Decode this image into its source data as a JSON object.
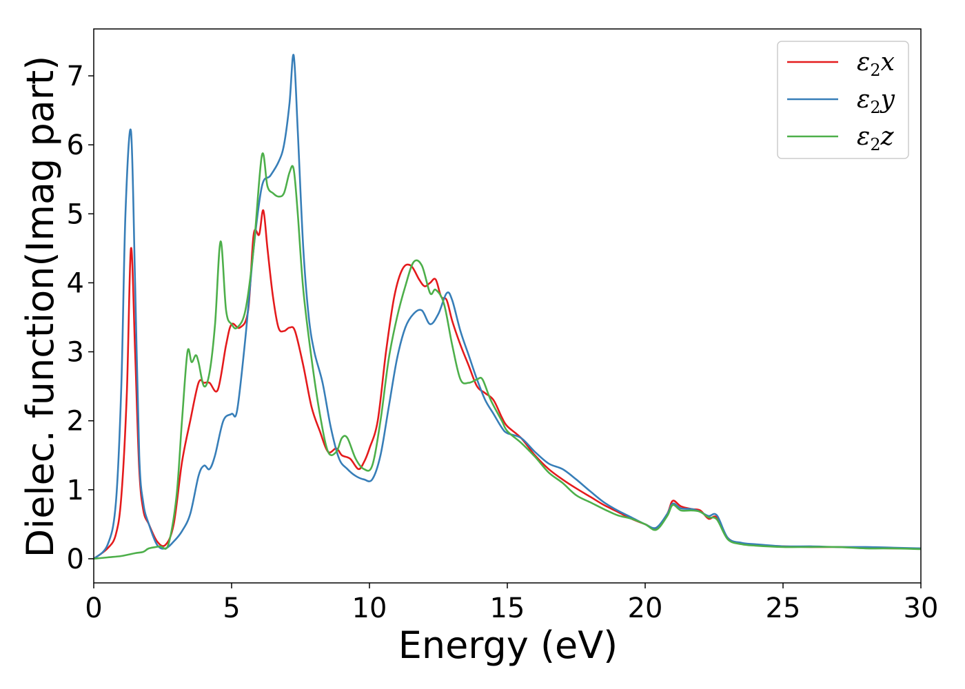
{
  "chart_data": {
    "type": "line",
    "title": "",
    "xlabel": "Energy (eV)",
    "ylabel": "Dielec. function(Imag part)",
    "xlim": [
      0,
      30
    ],
    "ylim": [
      -0.35,
      7.68
    ],
    "xticks": [
      0,
      5,
      10,
      15,
      20,
      25,
      30
    ],
    "yticks": [
      0,
      1,
      2,
      3,
      4,
      5,
      6,
      7
    ],
    "grid": false,
    "legend_position": "top-right",
    "series": [
      {
        "name": "ε₂x",
        "color": "#e41a1c",
        "x": [
          0,
          0.5,
          0.8,
          1.0,
          1.2,
          1.35,
          1.5,
          1.65,
          1.8,
          2.0,
          2.3,
          2.6,
          2.9,
          3.2,
          3.5,
          3.8,
          4.0,
          4.2,
          4.5,
          4.8,
          5.0,
          5.3,
          5.6,
          5.8,
          6.0,
          6.15,
          6.3,
          6.5,
          6.7,
          6.9,
          7.1,
          7.3,
          7.6,
          7.9,
          8.2,
          8.5,
          8.8,
          9.0,
          9.3,
          9.6,
          9.8,
          10.0,
          10.3,
          10.6,
          10.9,
          11.2,
          11.5,
          11.8,
          12.0,
          12.2,
          12.4,
          12.6,
          12.8,
          13.0,
          13.3,
          13.6,
          13.9,
          14.2,
          14.5,
          14.8,
          15.0,
          15.5,
          16.0,
          16.5,
          17.0,
          17.5,
          18.0,
          18.5,
          19.0,
          19.5,
          20.0,
          20.4,
          20.8,
          21.0,
          21.3,
          21.7,
          22.0,
          22.3,
          22.6,
          23.0,
          23.5,
          24.0,
          25.0,
          26.0,
          27.0,
          28.0,
          29.0,
          30.0
        ],
        "values": [
          0.0,
          0.15,
          0.35,
          0.9,
          2.4,
          4.5,
          3.0,
          1.3,
          0.7,
          0.5,
          0.25,
          0.2,
          0.5,
          1.4,
          2.0,
          2.55,
          2.55,
          2.55,
          2.45,
          3.1,
          3.4,
          3.35,
          3.6,
          4.7,
          4.7,
          5.05,
          4.5,
          3.8,
          3.35,
          3.3,
          3.35,
          3.3,
          2.8,
          2.2,
          1.85,
          1.55,
          1.6,
          1.5,
          1.45,
          1.3,
          1.4,
          1.6,
          2.0,
          3.0,
          3.8,
          4.2,
          4.25,
          4.05,
          3.95,
          4.0,
          4.05,
          3.8,
          3.75,
          3.45,
          3.1,
          2.8,
          2.5,
          2.4,
          2.3,
          2.05,
          1.92,
          1.75,
          1.5,
          1.3,
          1.15,
          1.02,
          0.9,
          0.78,
          0.68,
          0.58,
          0.5,
          0.44,
          0.65,
          0.84,
          0.76,
          0.72,
          0.7,
          0.58,
          0.6,
          0.3,
          0.22,
          0.2,
          0.18,
          0.17,
          0.17,
          0.16,
          0.15,
          0.15
        ]
      },
      {
        "name": "ε₂y",
        "color": "#377eb8",
        "x": [
          0,
          0.5,
          0.8,
          1.0,
          1.15,
          1.35,
          1.5,
          1.65,
          1.8,
          2.0,
          2.3,
          2.6,
          2.9,
          3.2,
          3.5,
          3.8,
          4.0,
          4.2,
          4.4,
          4.7,
          5.0,
          5.2,
          5.5,
          5.8,
          6.1,
          6.4,
          6.7,
          6.9,
          7.1,
          7.25,
          7.4,
          7.6,
          7.8,
          8.0,
          8.3,
          8.6,
          8.9,
          9.2,
          9.5,
          9.8,
          10.1,
          10.4,
          10.7,
          11.0,
          11.3,
          11.6,
          11.9,
          12.2,
          12.5,
          12.8,
          13.0,
          13.3,
          13.6,
          13.9,
          14.2,
          14.5,
          14.8,
          15.0,
          15.5,
          16.0,
          16.5,
          17.0,
          17.5,
          18.0,
          18.5,
          19.0,
          19.5,
          20.0,
          20.4,
          20.8,
          21.0,
          21.3,
          21.7,
          22.0,
          22.3,
          22.6,
          23.0,
          23.5,
          24.0,
          25.0,
          26.0,
          27.0,
          28.0,
          29.0,
          30.0
        ],
        "values": [
          0.0,
          0.2,
          0.8,
          2.5,
          5.0,
          6.2,
          4.0,
          1.5,
          0.8,
          0.5,
          0.2,
          0.15,
          0.25,
          0.4,
          0.65,
          1.2,
          1.35,
          1.3,
          1.5,
          2.0,
          2.1,
          2.15,
          3.2,
          4.5,
          5.4,
          5.55,
          5.75,
          6.0,
          6.6,
          7.3,
          6.2,
          4.5,
          3.5,
          3.0,
          2.55,
          1.9,
          1.45,
          1.3,
          1.2,
          1.15,
          1.15,
          1.5,
          2.2,
          2.9,
          3.35,
          3.55,
          3.6,
          3.4,
          3.55,
          3.85,
          3.75,
          3.3,
          2.95,
          2.6,
          2.3,
          2.1,
          1.9,
          1.82,
          1.75,
          1.55,
          1.38,
          1.3,
          1.15,
          0.98,
          0.82,
          0.7,
          0.6,
          0.5,
          0.45,
          0.65,
          0.8,
          0.73,
          0.72,
          0.68,
          0.62,
          0.63,
          0.3,
          0.23,
          0.21,
          0.18,
          0.18,
          0.17,
          0.17,
          0.16,
          0.15
        ]
      },
      {
        "name": "ε₂z",
        "color": "#4daf4a",
        "x": [
          0,
          0.5,
          1.0,
          1.5,
          1.8,
          2.0,
          2.4,
          2.7,
          3.0,
          3.2,
          3.4,
          3.55,
          3.7,
          3.8,
          4.0,
          4.2,
          4.4,
          4.6,
          4.8,
          5.0,
          5.2,
          5.5,
          5.8,
          6.1,
          6.3,
          6.5,
          6.7,
          6.9,
          7.1,
          7.25,
          7.4,
          7.6,
          7.9,
          8.2,
          8.5,
          8.8,
          9.0,
          9.2,
          9.5,
          9.8,
          10.1,
          10.4,
          10.7,
          11.0,
          11.3,
          11.6,
          11.9,
          12.2,
          12.4,
          12.7,
          13.0,
          13.3,
          13.6,
          13.9,
          14.1,
          14.4,
          14.8,
          15.0,
          15.5,
          16.0,
          16.5,
          17.0,
          17.5,
          18.0,
          18.5,
          19.0,
          19.5,
          20.0,
          20.4,
          20.8,
          21.0,
          21.3,
          21.7,
          22.0,
          22.3,
          22.6,
          23.0,
          23.5,
          24.0,
          25.0,
          26.0,
          27.0,
          28.0,
          29.0,
          30.0
        ],
        "values": [
          0.0,
          0.02,
          0.04,
          0.08,
          0.1,
          0.15,
          0.18,
          0.2,
          0.9,
          2.0,
          3.0,
          2.85,
          2.95,
          2.85,
          2.5,
          2.7,
          3.4,
          4.6,
          3.6,
          3.4,
          3.35,
          3.6,
          4.5,
          5.85,
          5.4,
          5.3,
          5.25,
          5.3,
          5.6,
          5.65,
          5.0,
          3.9,
          2.9,
          2.1,
          1.55,
          1.55,
          1.75,
          1.75,
          1.45,
          1.3,
          1.35,
          2.0,
          2.9,
          3.5,
          3.95,
          4.3,
          4.25,
          3.85,
          3.9,
          3.7,
          3.1,
          2.6,
          2.55,
          2.6,
          2.6,
          2.3,
          2.0,
          1.85,
          1.68,
          1.48,
          1.25,
          1.1,
          0.92,
          0.82,
          0.72,
          0.63,
          0.58,
          0.5,
          0.42,
          0.62,
          0.78,
          0.7,
          0.7,
          0.68,
          0.6,
          0.57,
          0.28,
          0.21,
          0.19,
          0.17,
          0.17,
          0.17,
          0.15,
          0.15,
          0.14
        ]
      }
    ]
  },
  "legend": {
    "entries": [
      {
        "base": "ε",
        "sub": "2",
        "var": "x"
      },
      {
        "base": "ε",
        "sub": "2",
        "var": "y"
      },
      {
        "base": "ε",
        "sub": "2",
        "var": "z"
      }
    ]
  }
}
